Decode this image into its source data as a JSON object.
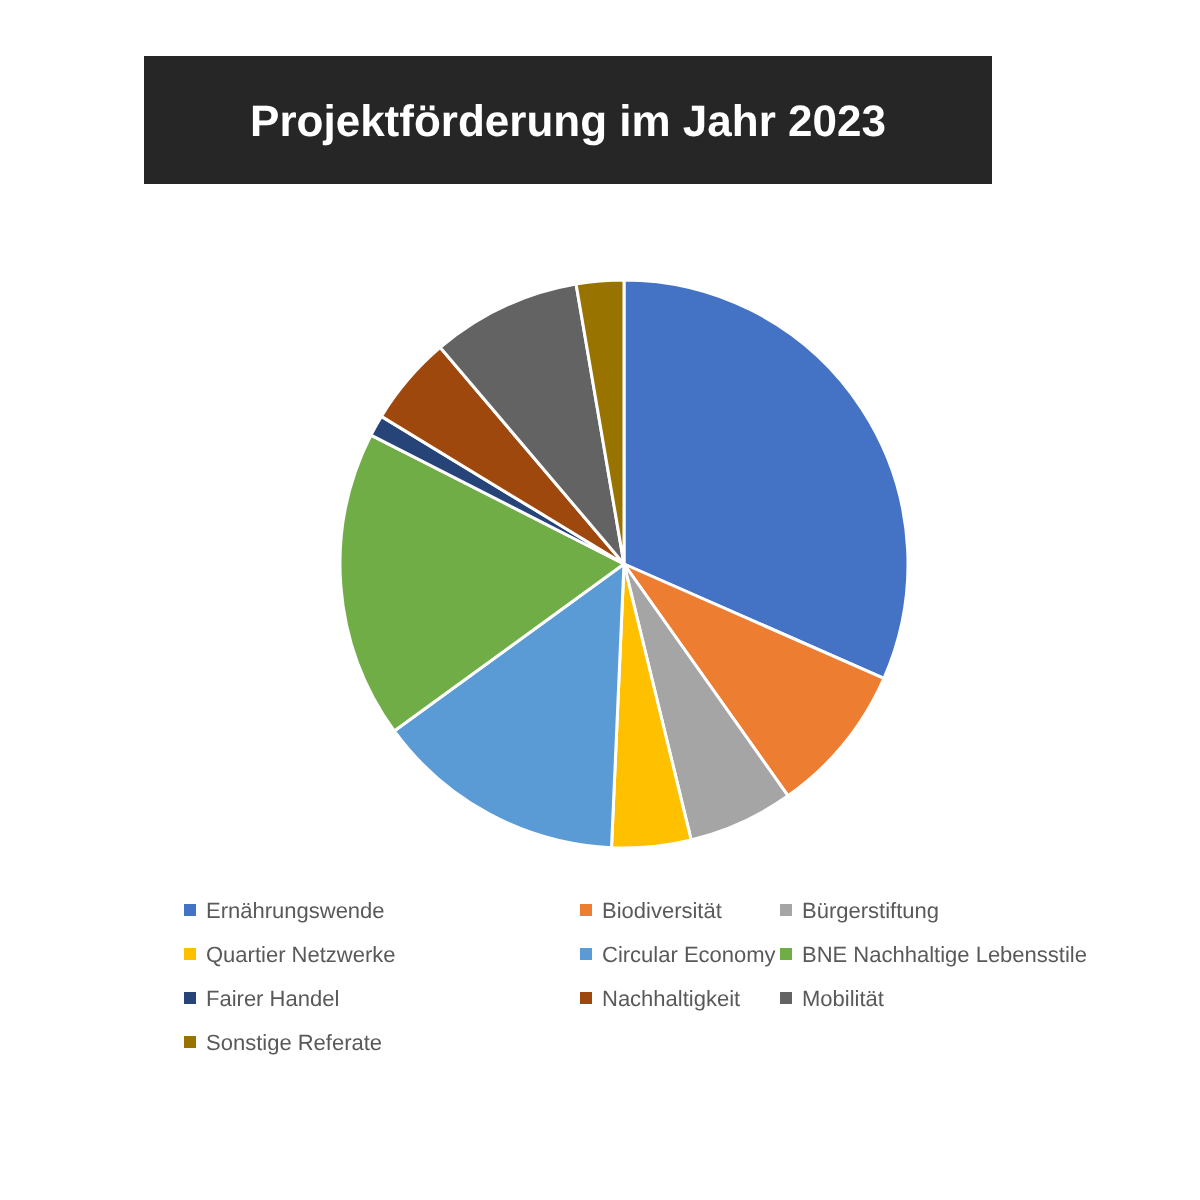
{
  "chart_data": {
    "type": "pie",
    "title": "Projektförderung im Jahr 2023",
    "categories": [
      "Ernährungswende",
      "Biodiversität",
      "Bürgerstiftung",
      "Quartier Netzwerke",
      "Circular Economy",
      "BNE Nachhaltige Lebensstile",
      "Fairer Handel",
      "Nachhaltigkeit",
      "Mobilität",
      "Sonstige Referate"
    ],
    "values": [
      31.6,
      8.6,
      6.0,
      4.5,
      14.3,
      17.5,
      1.2,
      5.1,
      8.5,
      2.7
    ],
    "colors": [
      "#4472c4",
      "#ed7d31",
      "#a5a5a5",
      "#ffc000",
      "#5b9bd5",
      "#70ad47",
      "#264478",
      "#9e480e",
      "#636363",
      "#997300"
    ],
    "legend": "bottom"
  }
}
